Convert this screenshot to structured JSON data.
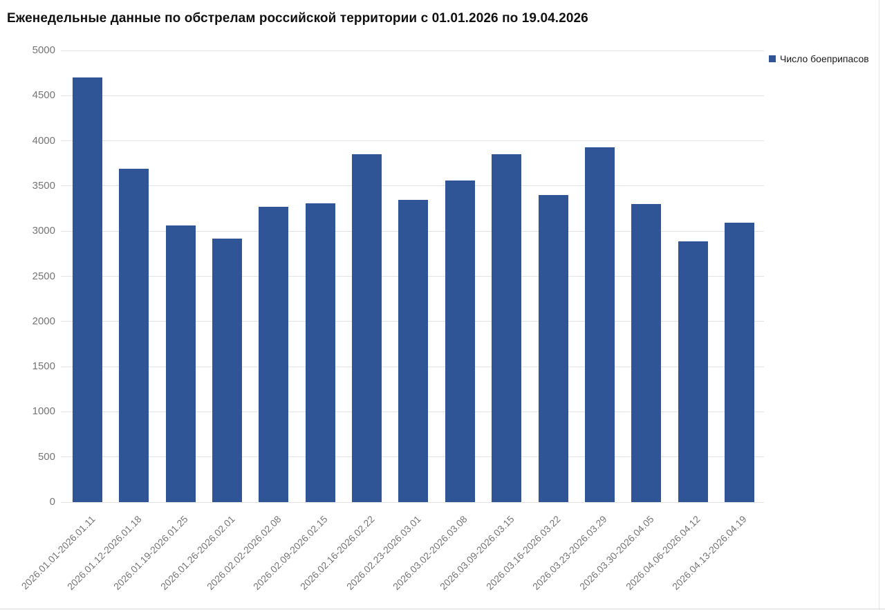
{
  "page": {
    "title": "Еженедельные данные по обстрелам российской территории с 01.01.2026 по 19.04.2026"
  },
  "legend": {
    "label": "Число боеприпасов"
  },
  "colors": {
    "bar": "#2F5597",
    "grid": "#e2e2e2",
    "axis_text": "#757575",
    "title_text": "#111111",
    "legend_text": "#1a1a1a"
  },
  "chart_data": {
    "type": "bar",
    "title": "Еженедельные данные по обстрелам российской территории с 01.01.2026 по 19.04.2026",
    "categories": [
      "2026.01.01-2026.01.11",
      "2026.01.12-2026.01.18",
      "2026.01.19-2026.01.25",
      "2026.01.26-2026.02.01",
      "2026.02.02-2026.02.08",
      "2026.02.09-2026.02.15",
      "2026.02.16-2026.02.22",
      "2026.02.23-2026.03.01",
      "2026.03.02-2026.03.08",
      "2026.03.09-2026.03.15",
      "2026.03.16-2026.03.22",
      "2026.03.23-2026.03.29",
      "2026.03.30-2026.04.05",
      "2026.04.06-2026.04.12",
      "2026.04.13-2026.04.19"
    ],
    "series": [
      {
        "name": "Число боеприпасов",
        "values": [
          4700,
          3690,
          3060,
          2920,
          3270,
          3310,
          3850,
          3350,
          3560,
          3850,
          3400,
          3930,
          3300,
          2890,
          3090
        ]
      }
    ],
    "xlabel": "",
    "ylabel": "",
    "ylim": [
      0,
      5000
    ],
    "ytick_step": 500,
    "grid": true,
    "legend_position": "top-right",
    "bar_color": "#2F5597",
    "x_label_rotation_deg": -45
  }
}
